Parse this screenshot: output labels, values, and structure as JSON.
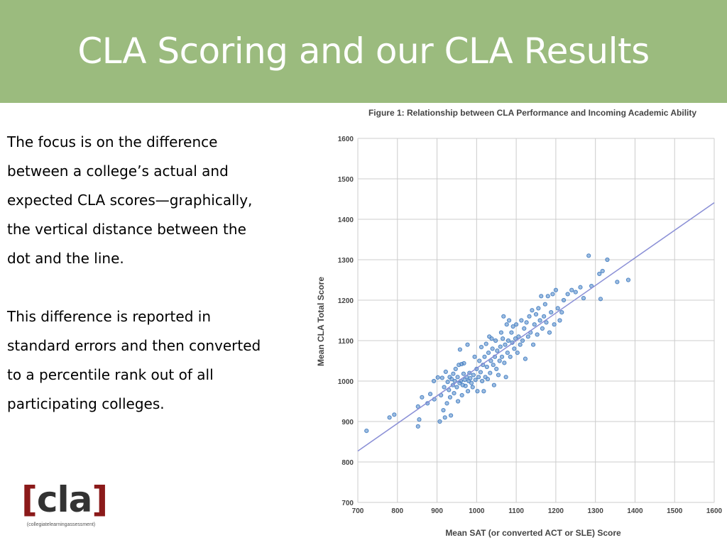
{
  "slide": {
    "title": "CLA Scoring and our CLA Results",
    "paragraphs": [
      "The focus is on the difference between a college’s actual and expected CLA scores—graphically, the vertical distance between the dot and the line.",
      "This difference is reported in standard errors and then converted to a percentile rank out of all participating colleges."
    ],
    "logo": {
      "bracket_left": "[",
      "text": "cla",
      "bracket_right": "]",
      "sub": "(collegiatelearningassessment)"
    }
  },
  "colors": {
    "banner": "#9bbb7e",
    "point": "#4f86c6",
    "line": "#8a8fd6"
  },
  "chart_data": {
    "type": "scatter",
    "title": "Figure 1: Relationship between CLA Performance and Incoming Academic Ability",
    "xlabel": "Mean SAT (or converted ACT or SLE) Score",
    "ylabel": "Mean CLA Total Score",
    "xlim": [
      700,
      1600
    ],
    "ylim": [
      700,
      1600
    ],
    "x_ticks": [
      700,
      800,
      900,
      1000,
      1100,
      1200,
      1300,
      1400,
      1500,
      1600
    ],
    "y_ticks": [
      700,
      800,
      900,
      1000,
      1100,
      1200,
      1300,
      1400,
      1500,
      1600
    ],
    "grid": true,
    "trend_line": {
      "x": [
        700,
        1600
      ],
      "y": [
        827,
        1441
      ]
    },
    "points": [
      [
        722,
        877
      ],
      [
        780,
        910
      ],
      [
        792,
        917
      ],
      [
        852,
        888
      ],
      [
        852,
        937
      ],
      [
        855,
        905
      ],
      [
        862,
        960
      ],
      [
        876,
        945
      ],
      [
        883,
        968
      ],
      [
        892,
        1000
      ],
      [
        893,
        955
      ],
      [
        902,
        1009
      ],
      [
        907,
        900
      ],
      [
        910,
        965
      ],
      [
        913,
        1008
      ],
      [
        916,
        928
      ],
      [
        918,
        985
      ],
      [
        920,
        910
      ],
      [
        922,
        1023
      ],
      [
        925,
        945
      ],
      [
        927,
        998
      ],
      [
        930,
        978
      ],
      [
        932,
        1010
      ],
      [
        933,
        960
      ],
      [
        935,
        915
      ],
      [
        937,
        1005
      ],
      [
        940,
        990
      ],
      [
        941,
        1018
      ],
      [
        943,
        970
      ],
      [
        945,
        1000
      ],
      [
        947,
        1030
      ],
      [
        950,
        985
      ],
      [
        952,
        1010
      ],
      [
        953,
        950
      ],
      [
        955,
        1040
      ],
      [
        957,
        995
      ],
      [
        958,
        1078
      ],
      [
        960,
        1000
      ],
      [
        962,
        1042
      ],
      [
        963,
        965
      ],
      [
        965,
        990
      ],
      [
        967,
        1018
      ],
      [
        968,
        1044
      ],
      [
        970,
        1003
      ],
      [
        972,
        988
      ],
      [
        975,
        1010
      ],
      [
        977,
        1090
      ],
      [
        978,
        975
      ],
      [
        980,
        1000
      ],
      [
        982,
        1020
      ],
      [
        984,
        1007
      ],
      [
        987,
        995
      ],
      [
        990,
        985
      ],
      [
        992,
        1015
      ],
      [
        995,
        1060
      ],
      [
        997,
        1003
      ],
      [
        1000,
        1030
      ],
      [
        1002,
        975
      ],
      [
        1005,
        1010
      ],
      [
        1007,
        1050
      ],
      [
        1010,
        1022
      ],
      [
        1012,
        1084
      ],
      [
        1014,
        1000
      ],
      [
        1016,
        1040
      ],
      [
        1018,
        975
      ],
      [
        1020,
        1060
      ],
      [
        1022,
        1010
      ],
      [
        1024,
        1092
      ],
      [
        1026,
        1035
      ],
      [
        1028,
        1005
      ],
      [
        1030,
        1070
      ],
      [
        1032,
        1110
      ],
      [
        1034,
        1020
      ],
      [
        1036,
        1050
      ],
      [
        1038,
        1105
      ],
      [
        1040,
        1080
      ],
      [
        1042,
        1040
      ],
      [
        1044,
        990
      ],
      [
        1046,
        1060
      ],
      [
        1048,
        1100
      ],
      [
        1050,
        1030
      ],
      [
        1052,
        1075
      ],
      [
        1055,
        1015
      ],
      [
        1058,
        1050
      ],
      [
        1060,
        1085
      ],
      [
        1062,
        1120
      ],
      [
        1064,
        1060
      ],
      [
        1066,
        1105
      ],
      [
        1068,
        1160
      ],
      [
        1070,
        1045
      ],
      [
        1072,
        1090
      ],
      [
        1074,
        1010
      ],
      [
        1076,
        1140
      ],
      [
        1078,
        1070
      ],
      [
        1080,
        1100
      ],
      [
        1082,
        1150
      ],
      [
        1085,
        1060
      ],
      [
        1088,
        1120
      ],
      [
        1090,
        1095
      ],
      [
        1092,
        1135
      ],
      [
        1095,
        1080
      ],
      [
        1098,
        1105
      ],
      [
        1100,
        1140
      ],
      [
        1103,
        1070
      ],
      [
        1106,
        1110
      ],
      [
        1110,
        1090
      ],
      [
        1113,
        1150
      ],
      [
        1116,
        1100
      ],
      [
        1120,
        1130
      ],
      [
        1123,
        1055
      ],
      [
        1126,
        1145
      ],
      [
        1130,
        1110
      ],
      [
        1133,
        1160
      ],
      [
        1136,
        1120
      ],
      [
        1140,
        1175
      ],
      [
        1143,
        1090
      ],
      [
        1146,
        1140
      ],
      [
        1150,
        1165
      ],
      [
        1153,
        1115
      ],
      [
        1156,
        1180
      ],
      [
        1160,
        1150
      ],
      [
        1163,
        1210
      ],
      [
        1166,
        1130
      ],
      [
        1170,
        1160
      ],
      [
        1173,
        1190
      ],
      [
        1176,
        1145
      ],
      [
        1180,
        1210
      ],
      [
        1184,
        1120
      ],
      [
        1188,
        1170
      ],
      [
        1192,
        1215
      ],
      [
        1196,
        1140
      ],
      [
        1200,
        1225
      ],
      [
        1205,
        1180
      ],
      [
        1210,
        1150
      ],
      [
        1215,
        1170
      ],
      [
        1220,
        1200
      ],
      [
        1230,
        1215
      ],
      [
        1240,
        1225
      ],
      [
        1250,
        1220
      ],
      [
        1262,
        1232
      ],
      [
        1270,
        1205
      ],
      [
        1283,
        1310
      ],
      [
        1290,
        1235
      ],
      [
        1310,
        1265
      ],
      [
        1313,
        1203
      ],
      [
        1318,
        1272
      ],
      [
        1330,
        1300
      ],
      [
        1355,
        1245
      ],
      [
        1383,
        1250
      ]
    ]
  }
}
